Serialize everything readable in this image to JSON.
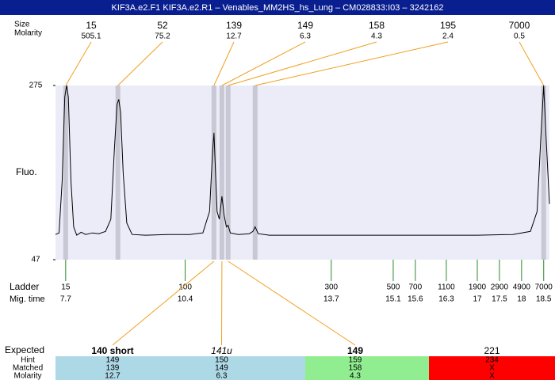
{
  "title": "KIF3A.e2.F1  KIF3A.e2.R1 – Venables_MM2HS_hs_Lung – CM028833:I03 – 3242162",
  "chart_data": {
    "type": "line",
    "y_label": "Fluo.",
    "ylim": [
      47,
      275
    ],
    "yticks": [
      47,
      275
    ],
    "xlim": [
      7.47,
      18.63
    ],
    "color": "#000000",
    "background": "#ececf8",
    "x": [
      7.47,
      7.55,
      7.62,
      7.68,
      7.72,
      7.76,
      7.82,
      7.88,
      7.95,
      8.05,
      8.15,
      8.3,
      8.45,
      8.6,
      8.72,
      8.8,
      8.86,
      8.9,
      8.94,
      9.0,
      9.08,
      9.2,
      9.5,
      10.0,
      10.5,
      10.8,
      10.95,
      11.02,
      11.05,
      11.08,
      11.12,
      11.17,
      11.23,
      11.28,
      11.33,
      11.37,
      11.42,
      11.6,
      11.85,
      11.93,
      11.98,
      12.05,
      12.3,
      13.0,
      14.0,
      15.0,
      16.0,
      17.0,
      17.8,
      18.2,
      18.35,
      18.43,
      18.5,
      18.56,
      18.63
    ],
    "values": [
      80,
      82,
      150,
      260,
      275,
      260,
      150,
      90,
      79,
      83,
      80,
      82,
      81,
      84,
      100,
      190,
      250,
      257,
      240,
      160,
      95,
      80,
      79,
      80,
      80,
      82,
      110,
      190,
      213,
      170,
      110,
      100,
      130,
      105,
      90,
      92,
      82,
      80,
      81,
      84,
      90,
      81,
      79,
      79,
      79,
      79,
      79,
      79,
      80,
      84,
      110,
      200,
      275,
      200,
      120
    ]
  },
  "peaks": {
    "size_label": "Size",
    "molarity_label": "Molarity",
    "sizes": [
      15,
      52,
      139,
      149,
      158,
      195,
      7000
    ],
    "molarities": [
      505.1,
      75.2,
      12.7,
      6.3,
      4.3,
      2.4,
      0.5
    ],
    "times": [
      7.7,
      8.88,
      11.05,
      11.23,
      11.37,
      11.98,
      18.5
    ],
    "line_color": "#f0a020",
    "band_color": "#c8c8d4"
  },
  "ladder": {
    "label": "Ladder",
    "time_label": "Mig. time",
    "sizes": [
      15,
      100,
      300,
      500,
      700,
      1100,
      1900,
      2900,
      4900,
      7000
    ],
    "times": [
      7.7,
      10.4,
      13.7,
      15.1,
      15.6,
      16.3,
      17,
      17.5,
      18,
      18.5
    ],
    "color": "#2a8a2a"
  },
  "expected": {
    "row_labels": [
      "Expected",
      "Hint",
      "Matched",
      "Molarity"
    ],
    "expected": [
      "140 short",
      "141u",
      "149",
      "221"
    ],
    "hint": [
      "149",
      "150",
      "159",
      "234"
    ],
    "matched": [
      "139",
      "149",
      "158",
      "X"
    ],
    "molarity": [
      "12.7",
      "6.3",
      "4.3",
      "X"
    ],
    "matched_peaks": [
      2,
      3,
      4
    ],
    "colors": [
      "#add8e6",
      "#add8e6",
      "#90ee90",
      "#ff0000"
    ]
  }
}
